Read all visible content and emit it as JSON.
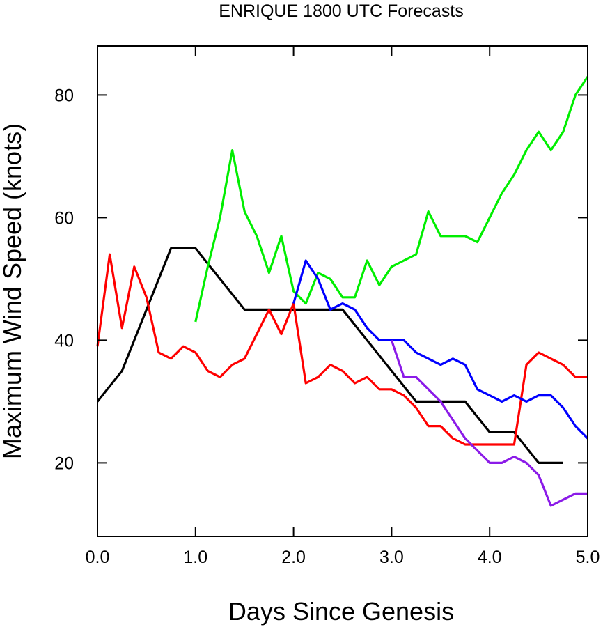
{
  "chart_data": {
    "type": "line",
    "title": "ENRIQUE 1800 UTC Forecasts",
    "xlabel": "Days Since Genesis",
    "ylabel": "Maximum Wind Speed (knots)",
    "xlim": [
      0,
      5
    ],
    "ylim": [
      8,
      88
    ],
    "xticks": [
      "0.0",
      "1.0",
      "2.0",
      "3.0",
      "4.0",
      "5.0"
    ],
    "yticks": [
      "20",
      "40",
      "60",
      "80"
    ],
    "grid": false,
    "legend": "none",
    "series": [
      {
        "color": "#000000",
        "x": [
          0,
          0.25,
          0.75,
          1.0,
          1.5,
          2.5,
          3.25,
          3.75,
          4.0,
          4.25,
          4.5,
          4.75
        ],
        "y": [
          30,
          35,
          55,
          55,
          45,
          45,
          30,
          30,
          25,
          25,
          20,
          20
        ]
      },
      {
        "color": "#ff0000",
        "x": [
          0,
          0.125,
          0.25,
          0.375,
          0.5,
          0.625,
          0.75,
          0.875,
          1.0,
          1.125,
          1.25,
          1.375,
          1.5,
          1.625,
          1.75,
          1.875,
          2.0,
          2.125,
          2.25,
          2.375,
          2.5,
          2.625,
          2.75,
          2.875,
          3.0,
          3.125,
          3.25,
          3.375,
          3.5,
          3.625,
          3.75,
          3.875,
          4.0,
          4.125,
          4.25,
          4.375,
          4.5,
          4.625,
          4.75,
          4.875,
          5.0
        ],
        "y": [
          39,
          54,
          42,
          52,
          47,
          38,
          37,
          39,
          38,
          35,
          34,
          36,
          37,
          41,
          45,
          41,
          46,
          33,
          34,
          36,
          35,
          33,
          34,
          32,
          32,
          31,
          29,
          26,
          26,
          24,
          23,
          23,
          23,
          23,
          23,
          36,
          38,
          37,
          36,
          34,
          34
        ]
      },
      {
        "color": "#00ee00",
        "x": [
          1.0,
          1.125,
          1.25,
          1.375,
          1.5,
          1.625,
          1.75,
          1.875,
          2.0,
          2.125,
          2.25,
          2.375,
          2.5,
          2.625,
          2.75,
          2.875,
          3.0,
          3.125,
          3.25,
          3.375,
          3.5,
          3.625,
          3.75,
          3.875,
          4.0,
          4.125,
          4.25,
          4.375,
          4.5,
          4.625,
          4.75,
          4.875,
          5.0
        ],
        "y": [
          43,
          52,
          60,
          71,
          61,
          57,
          51,
          57,
          48,
          46,
          51,
          50,
          47,
          47,
          53,
          49,
          52,
          53,
          54,
          61,
          57,
          57,
          57,
          56,
          60,
          64,
          67,
          71,
          74,
          71,
          74,
          80,
          83
        ]
      },
      {
        "color": "#0000ff",
        "x": [
          2.0,
          2.125,
          2.25,
          2.375,
          2.5,
          2.625,
          2.75,
          2.875,
          3.0,
          3.125,
          3.25,
          3.375,
          3.5,
          3.625,
          3.75,
          3.875,
          4.0,
          4.125,
          4.25,
          4.375,
          4.5,
          4.625,
          4.75,
          4.875,
          5.0
        ],
        "y": [
          46,
          53,
          50,
          45,
          46,
          45,
          42,
          40,
          40,
          40,
          38,
          37,
          36,
          37,
          36,
          32,
          31,
          30,
          31,
          30,
          31,
          31,
          29,
          26,
          24
        ]
      },
      {
        "color": "#8b1be8",
        "x": [
          3.0,
          3.125,
          3.25,
          3.375,
          3.5,
          3.625,
          3.75,
          3.875,
          4.0,
          4.125,
          4.25,
          4.375,
          4.5,
          4.625,
          4.75,
          4.875,
          5.0
        ],
        "y": [
          40,
          34,
          34,
          32,
          30,
          27,
          24,
          22,
          20,
          20,
          21,
          20,
          18,
          13,
          14,
          15,
          15
        ]
      }
    ]
  }
}
